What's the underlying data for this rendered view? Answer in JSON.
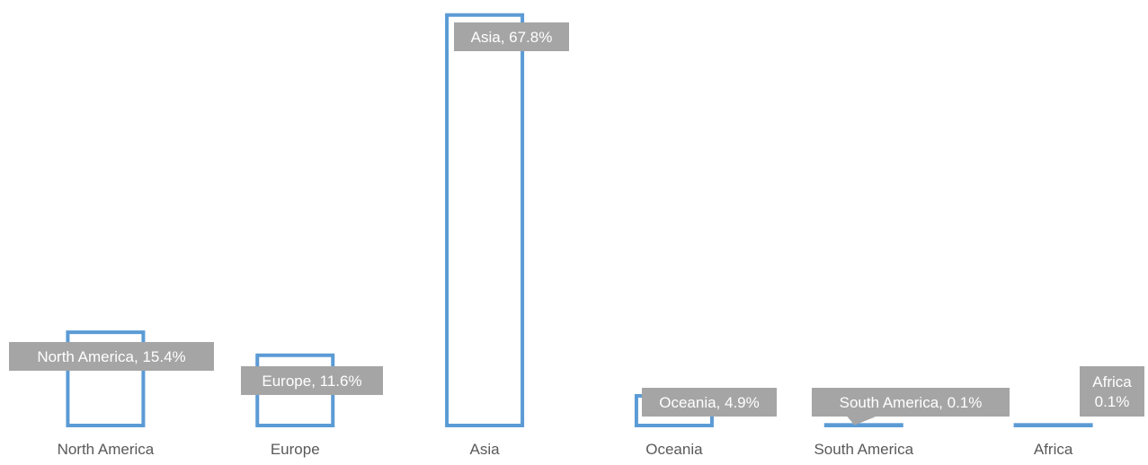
{
  "chart_data": {
    "type": "bar",
    "categories": [
      "North America",
      "Europe",
      "Asia",
      "Oceania",
      "South America",
      "Africa"
    ],
    "values": [
      15.4,
      11.6,
      67.8,
      4.9,
      0.1,
      0.1
    ],
    "data_labels": [
      [
        "North America, 15.4%"
      ],
      [
        "Europe, 11.6%"
      ],
      [
        "Asia, 67.8%"
      ],
      [
        "Oceania, 4.9%"
      ],
      [
        "South America, 0.1%"
      ],
      [
        "Africa",
        "0.1%"
      ]
    ],
    "unit": "%",
    "ylim": [
      0,
      68.5
    ],
    "grid": false,
    "colors": {
      "bar_outline": "#5b9bd5",
      "label_box": "#a5a5a5",
      "label_text": "#ffffff",
      "axis_text": "#595959"
    }
  }
}
